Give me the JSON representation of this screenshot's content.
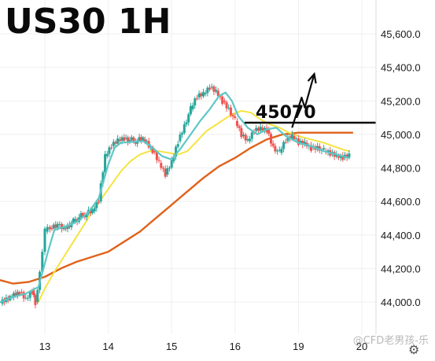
{
  "chart_data": {
    "type": "line",
    "title": "US30 1H",
    "xlabel": "",
    "ylabel": "",
    "ylim": [
      43900,
      45700
    ],
    "grid": true,
    "y_ticks": [
      "44,000.0",
      "44,200.0",
      "44,400.0",
      "44,600.0",
      "44,800.0",
      "45,000.0",
      "45,200.0",
      "45,400.0",
      "45,600.0"
    ],
    "y_tick_values": [
      44000,
      44200,
      44400,
      44600,
      44800,
      45000,
      45200,
      45400,
      45600
    ],
    "x_ticks": [
      "13",
      "14",
      "15",
      "16",
      "19",
      "20"
    ],
    "x_tick_positions": [
      0.5,
      1.5,
      2.5,
      3.5,
      4.5,
      5.5
    ],
    "x_range": [
      0,
      6
    ],
    "colors": {
      "up": "#26a69a",
      "down": "#ef5350",
      "fast_ma": "#5fc6c8",
      "mid_ma": "#f6e33f",
      "slow_ma": "#e0621a",
      "annotation": "#0a0a0a",
      "grid": "#efefef"
    },
    "annotation": {
      "label": "45070",
      "level": 45070,
      "breakout_path": [
        [
          4.4,
          45040
        ],
        [
          4.55,
          45220
        ],
        [
          4.6,
          45160
        ],
        [
          4.75,
          45360
        ]
      ]
    },
    "series": [
      {
        "style": "fast_ma",
        "points": [
          [
            -0.2,
            44000
          ],
          [
            0.0,
            44030
          ],
          [
            0.2,
            44050
          ],
          [
            0.4,
            44090
          ],
          [
            0.55,
            44300
          ],
          [
            0.65,
            44430
          ],
          [
            0.9,
            44460
          ],
          [
            1.05,
            44490
          ],
          [
            1.2,
            44540
          ],
          [
            1.35,
            44620
          ],
          [
            1.5,
            44820
          ],
          [
            1.6,
            44920
          ],
          [
            1.7,
            44950
          ],
          [
            2.05,
            44960
          ],
          [
            2.2,
            44920
          ],
          [
            2.35,
            44870
          ],
          [
            2.5,
            44850
          ],
          [
            2.65,
            44920
          ],
          [
            2.8,
            45000
          ],
          [
            2.95,
            45080
          ],
          [
            3.1,
            45150
          ],
          [
            3.25,
            45230
          ],
          [
            3.35,
            45250
          ],
          [
            3.45,
            45200
          ],
          [
            3.55,
            45110
          ],
          [
            3.7,
            45040
          ],
          [
            3.85,
            45000
          ],
          [
            4.0,
            45030
          ],
          [
            4.15,
            45040
          ],
          [
            4.3,
            44990
          ],
          [
            4.5,
            44950
          ],
          [
            4.7,
            44930
          ],
          [
            4.9,
            44900
          ],
          [
            5.1,
            44880
          ],
          [
            5.3,
            44860
          ]
        ]
      },
      {
        "style": "mid_ma",
        "points": [
          [
            0.4,
            44000
          ],
          [
            0.5,
            44080
          ],
          [
            0.65,
            44180
          ],
          [
            0.8,
            44270
          ],
          [
            0.95,
            44360
          ],
          [
            1.1,
            44450
          ],
          [
            1.25,
            44540
          ],
          [
            1.4,
            44620
          ],
          [
            1.55,
            44700
          ],
          [
            1.7,
            44780
          ],
          [
            1.85,
            44840
          ],
          [
            2.0,
            44880
          ],
          [
            2.15,
            44900
          ],
          [
            2.3,
            44900
          ],
          [
            2.45,
            44890
          ],
          [
            2.6,
            44880
          ],
          [
            2.75,
            44900
          ],
          [
            2.9,
            44960
          ],
          [
            3.05,
            45020
          ],
          [
            3.25,
            45070
          ],
          [
            3.45,
            45120
          ],
          [
            3.6,
            45140
          ],
          [
            3.75,
            45130
          ],
          [
            3.9,
            45090
          ],
          [
            4.05,
            45060
          ],
          [
            4.2,
            45040
          ],
          [
            4.35,
            45010
          ],
          [
            4.5,
            44990
          ],
          [
            4.7,
            44970
          ],
          [
            4.9,
            44950
          ],
          [
            5.05,
            44930
          ],
          [
            5.2,
            44910
          ],
          [
            5.3,
            44900
          ]
        ]
      },
      {
        "style": "slow_ma",
        "points": [
          [
            -0.2,
            44130
          ],
          [
            0.0,
            44110
          ],
          [
            0.25,
            44120
          ],
          [
            0.5,
            44150
          ],
          [
            0.75,
            44200
          ],
          [
            1.0,
            44240
          ],
          [
            1.25,
            44270
          ],
          [
            1.5,
            44300
          ],
          [
            1.75,
            44360
          ],
          [
            2.0,
            44420
          ],
          [
            2.25,
            44500
          ],
          [
            2.5,
            44580
          ],
          [
            2.75,
            44660
          ],
          [
            3.0,
            44740
          ],
          [
            3.25,
            44810
          ],
          [
            3.5,
            44860
          ],
          [
            3.75,
            44920
          ],
          [
            4.0,
            44970
          ],
          [
            4.25,
            45000
          ],
          [
            4.5,
            45010
          ],
          [
            4.75,
            45010
          ],
          [
            5.0,
            45010
          ],
          [
            5.25,
            45010
          ],
          [
            5.35,
            45010
          ]
        ]
      }
    ],
    "candles_close_path": [
      [
        -0.2,
        43990
      ],
      [
        -0.05,
        44030
      ],
      [
        0.1,
        44060
      ],
      [
        0.2,
        44020
      ],
      [
        0.3,
        44070
      ],
      [
        0.35,
        44000
      ],
      [
        0.42,
        44180
      ],
      [
        0.5,
        44420
      ],
      [
        0.58,
        44440
      ],
      [
        0.7,
        44460
      ],
      [
        0.8,
        44440
      ],
      [
        0.95,
        44480
      ],
      [
        1.1,
        44520
      ],
      [
        1.25,
        44540
      ],
      [
        1.35,
        44600
      ],
      [
        1.45,
        44870
      ],
      [
        1.55,
        44930
      ],
      [
        1.65,
        44970
      ],
      [
        1.75,
        44980
      ],
      [
        1.9,
        44960
      ],
      [
        2.05,
        44970
      ],
      [
        2.2,
        44900
      ],
      [
        2.3,
        44830
      ],
      [
        2.4,
        44760
      ],
      [
        2.5,
        44840
      ],
      [
        2.6,
        44960
      ],
      [
        2.7,
        45060
      ],
      [
        2.8,
        45150
      ],
      [
        2.9,
        45220
      ],
      [
        3.0,
        45240
      ],
      [
        3.1,
        45280
      ],
      [
        3.2,
        45260
      ],
      [
        3.3,
        45200
      ],
      [
        3.4,
        45160
      ],
      [
        3.5,
        45080
      ],
      [
        3.6,
        44990
      ],
      [
        3.7,
        44960
      ],
      [
        3.8,
        45020
      ],
      [
        3.9,
        45040
      ],
      [
        4.0,
        45030
      ],
      [
        4.1,
        44930
      ],
      [
        4.2,
        44890
      ],
      [
        4.3,
        44960
      ],
      [
        4.4,
        44990
      ],
      [
        4.5,
        44950
      ],
      [
        4.6,
        44950
      ],
      [
        4.7,
        44920
      ],
      [
        4.8,
        44930
      ],
      [
        4.9,
        44900
      ],
      [
        5.0,
        44880
      ],
      [
        5.1,
        44870
      ],
      [
        5.2,
        44860
      ],
      [
        5.3,
        44880
      ]
    ]
  },
  "watermark": "@CFD老男孩-乐",
  "settings_icon": "gear-icon"
}
